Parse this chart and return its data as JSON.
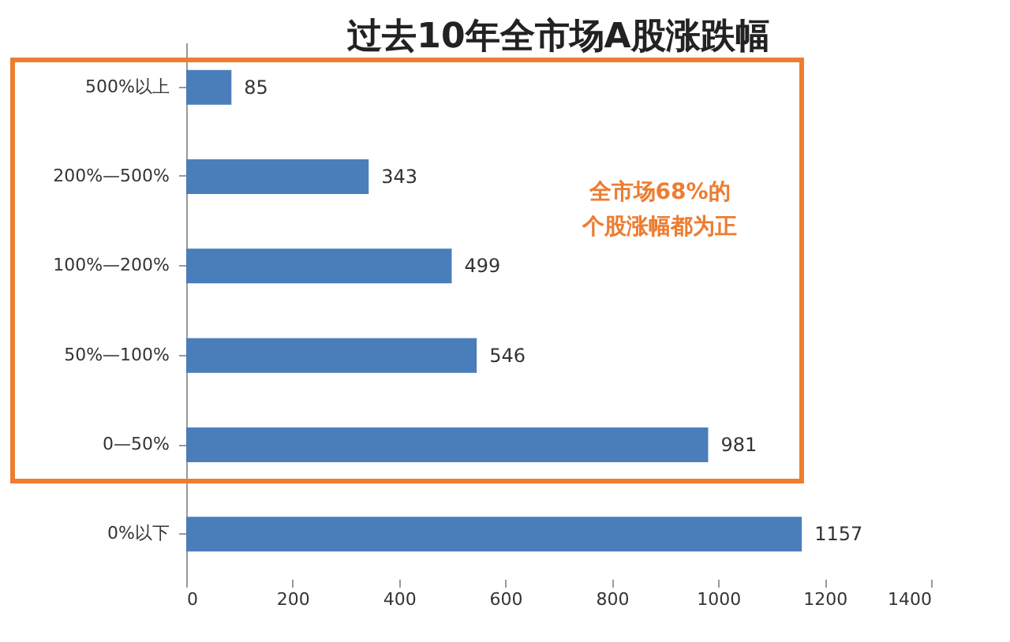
{
  "chart_data": {
    "type": "bar",
    "orientation": "horizontal",
    "title": "过去10年全市场A股涨跌幅",
    "categories": [
      "500%以上",
      "200%—500%",
      "100%—200%",
      "50%—100%",
      "0—50%",
      "0%以下"
    ],
    "values": [
      85,
      343,
      499,
      546,
      981,
      1157
    ],
    "color": "#4a7ebb",
    "xlim": [
      0,
      1400
    ],
    "xticks": [
      0,
      200,
      400,
      600,
      800,
      1000,
      1200,
      1400
    ],
    "grid": false,
    "data_labels": true,
    "annotations": [
      "全市场68%的",
      "个股涨幅都为正"
    ]
  }
}
